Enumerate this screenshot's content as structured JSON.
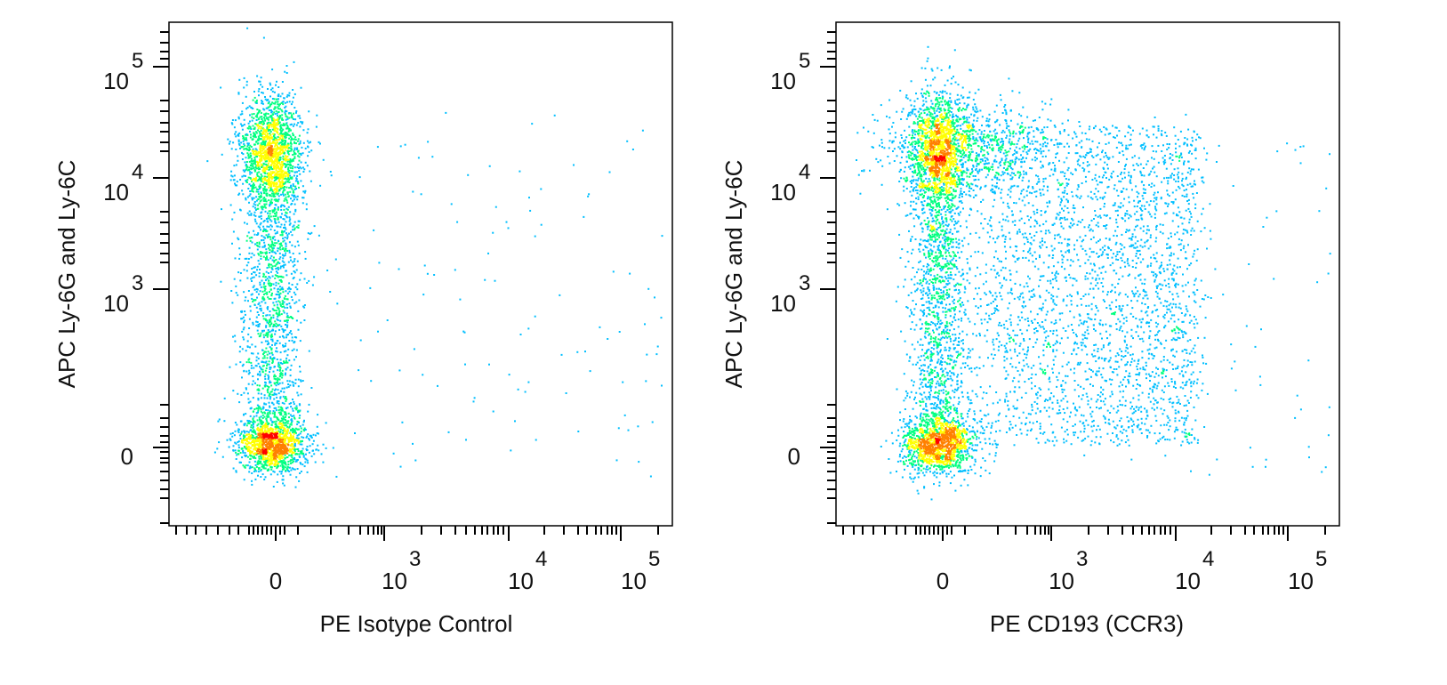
{
  "chart_data": [
    {
      "type": "scatter",
      "subtype": "flow-cytometry density plot",
      "xlabel": "PE Isotype Control",
      "ylabel": "APC  Ly-6G and Ly-6C",
      "x_scale": "biexponential",
      "y_scale": "biexponential",
      "xlim": [
        -300,
        200000
      ],
      "ylim": [
        -300,
        200000
      ],
      "x_ticks": [
        {
          "base": "0",
          "exp": ""
        },
        {
          "base": "10",
          "exp": "3"
        },
        {
          "base": "10",
          "exp": "4"
        },
        {
          "base": "10",
          "exp": "5"
        }
      ],
      "y_ticks": [
        {
          "base": "0",
          "exp": ""
        },
        {
          "base": "10",
          "exp": "3"
        },
        {
          "base": "10",
          "exp": "4"
        },
        {
          "base": "10",
          "exp": "5"
        }
      ],
      "populations": [
        {
          "name": "",
          "x_center": 0,
          "y_center": 0,
          "relative_density": "high"
        },
        {
          "name": "",
          "x_center": 0,
          "y_center": 22000,
          "relative_density": "high"
        },
        {
          "name": "",
          "x_center": 0,
          "y_center": 2000,
          "relative_density": "medium"
        }
      ],
      "grid": false,
      "legend": "none",
      "colormap": [
        "#0000ff",
        "#00bfff",
        "#00ff80",
        "#ffff00",
        "#ff8000",
        "#ff0000"
      ]
    },
    {
      "type": "scatter",
      "subtype": "flow-cytometry density plot",
      "xlabel": "PE CD193 (CCR3)",
      "ylabel": "APC  Ly-6G and Ly-6C",
      "x_scale": "biexponential",
      "y_scale": "biexponential",
      "xlim": [
        -300,
        200000
      ],
      "ylim": [
        -300,
        200000
      ],
      "x_ticks": [
        {
          "base": "0",
          "exp": ""
        },
        {
          "base": "10",
          "exp": "3"
        },
        {
          "base": "10",
          "exp": "4"
        },
        {
          "base": "10",
          "exp": "5"
        }
      ],
      "y_ticks": [
        {
          "base": "0",
          "exp": ""
        },
        {
          "base": "10",
          "exp": "3"
        },
        {
          "base": "10",
          "exp": "4"
        },
        {
          "base": "10",
          "exp": "5"
        }
      ],
      "populations": [
        {
          "name": "",
          "x_center": 0,
          "y_center": 0,
          "relative_density": "high"
        },
        {
          "name": "",
          "x_center": 0,
          "y_center": 22000,
          "relative_density": "high"
        },
        {
          "name": "",
          "x_center": 3000,
          "y_center": 900,
          "relative_density": "low"
        }
      ],
      "grid": false,
      "legend": "none",
      "colormap": [
        "#0000ff",
        "#00bfff",
        "#00ff80",
        "#ffff00",
        "#ff8000",
        "#ff0000"
      ]
    }
  ]
}
